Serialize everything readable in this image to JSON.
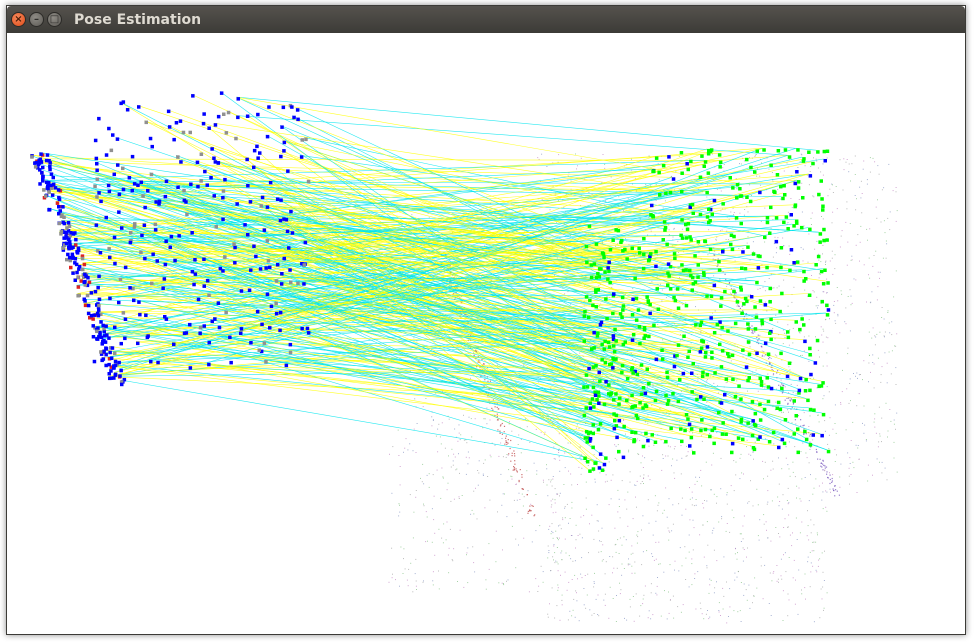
{
  "window": {
    "title": "Pose Estimation",
    "controls": {
      "close_glyph": "×",
      "minimize_glyph": "–",
      "maximize_glyph": "□"
    }
  },
  "viewer": {
    "background_color": "#ffffff",
    "match_line_colors": [
      "#00e5ee",
      "#ffff00"
    ],
    "source_cloud_keypoint_color": "#0000ff",
    "target_cloud_keypoint_color": "#00ff00",
    "source_cloud_edge_color": "#dd2222",
    "scene_point_colors": [
      "#c080c0",
      "#8090c0",
      "#a0a0a0",
      "#80c080"
    ]
  }
}
